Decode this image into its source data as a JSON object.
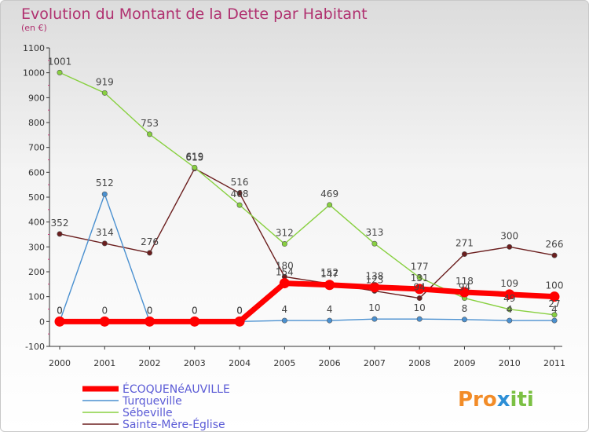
{
  "chart_data": {
    "type": "line",
    "title": "Evolution du Montant de la Dette par Habitant",
    "subtitle": "(en €)",
    "x": [
      "2000",
      "2001",
      "2002",
      "2003",
      "2004",
      "2005",
      "2006",
      "2007",
      "2008",
      "2009",
      "2010",
      "2011"
    ],
    "ylim": [
      -100,
      1100
    ],
    "yticks": [
      -100,
      0,
      100,
      200,
      300,
      400,
      500,
      600,
      700,
      800,
      900,
      1000,
      1100
    ],
    "grid": false,
    "legend_position": "bottom-left",
    "series": [
      {
        "name": "ÉCOQUENéAUVILLE",
        "color": "#ff0000",
        "values": [
          0,
          0,
          0,
          0,
          0,
          154,
          147,
          138,
          131,
          118,
          109,
          100
        ],
        "labels": [
          "0",
          "0",
          "0",
          "0",
          "0",
          "154",
          "147",
          "138",
          "131",
          "118",
          "109",
          "100"
        ]
      },
      {
        "name": "Turqueville",
        "color": "#4a90d0",
        "values": [
          0,
          512,
          0,
          0,
          0,
          4,
          4,
          10,
          10,
          8,
          4,
          4
        ],
        "labels": [
          "0",
          "512",
          "0",
          "0",
          "0",
          "4",
          "4",
          "10",
          "10",
          "8",
          "4",
          "4"
        ]
      },
      {
        "name": "Sébeville",
        "color": "#88d040",
        "values": [
          1001,
          919,
          753,
          619,
          468,
          312,
          469,
          313,
          177,
          94,
          49,
          27
        ],
        "labels": [
          "1001",
          "919",
          "753",
          "619",
          "468",
          "312",
          "469",
          "313",
          "177",
          "94",
          "49",
          "27"
        ]
      },
      {
        "name": "Sainte-Mère-Église",
        "color": "#6b1e1e",
        "values": [
          352,
          314,
          276,
          615,
          516,
          180,
          152,
          123,
          94,
          271,
          300,
          266
        ],
        "labels": [
          "352",
          "314",
          "276",
          "615",
          "516",
          "180",
          "152",
          "123",
          "94",
          "271",
          "300",
          "266"
        ]
      }
    ]
  },
  "logo": {
    "parts": [
      "Pro",
      "x",
      "iti"
    ],
    "colors": [
      "#f28c28",
      "#2d8fd6",
      "#7bc043"
    ]
  }
}
